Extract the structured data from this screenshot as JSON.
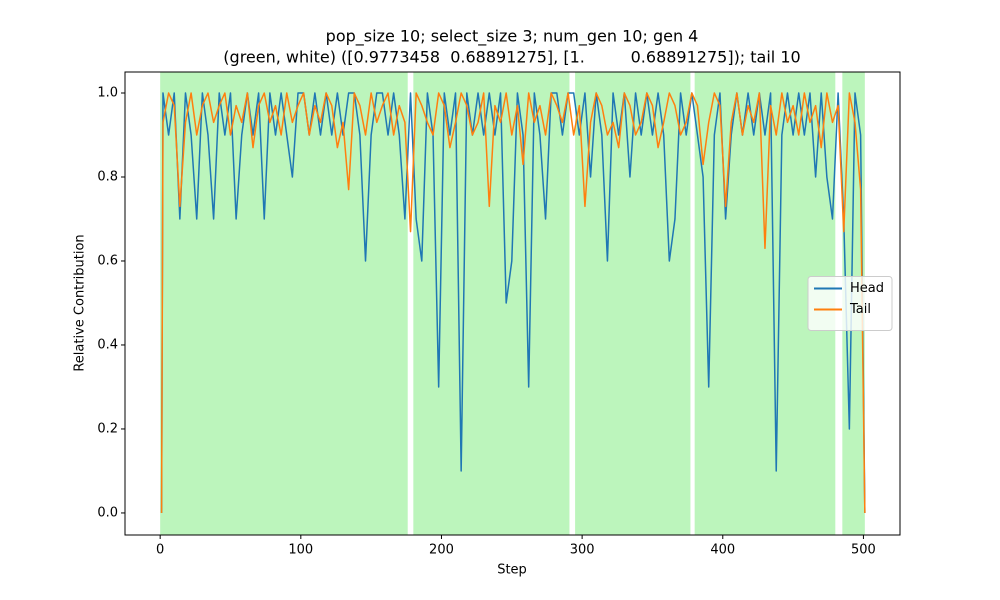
{
  "chart_data": {
    "type": "line",
    "title": [
      "pop_size 10; select_size 3; num_gen 10; gen 4",
      "(green, white) ([0.9773458  0.68891275], [1.         0.68891275]); tail 10"
    ],
    "xlabel": "Step",
    "ylabel": "Relative Contribution",
    "x": [
      1,
      2,
      6,
      10,
      14,
      18,
      22,
      26,
      30,
      34,
      38,
      42,
      46,
      50,
      54,
      58,
      62,
      66,
      70,
      74,
      78,
      82,
      86,
      90,
      94,
      98,
      102,
      106,
      110,
      114,
      118,
      122,
      126,
      130,
      134,
      138,
      142,
      146,
      150,
      154,
      158,
      162,
      166,
      170,
      174,
      178,
      182,
      186,
      190,
      194,
      198,
      202,
      206,
      210,
      214,
      218,
      222,
      226,
      230,
      234,
      238,
      242,
      246,
      250,
      254,
      258,
      262,
      266,
      270,
      274,
      278,
      282,
      286,
      290,
      294,
      298,
      302,
      306,
      310,
      314,
      318,
      322,
      326,
      330,
      334,
      338,
      342,
      346,
      350,
      354,
      358,
      362,
      366,
      370,
      374,
      378,
      382,
      386,
      390,
      394,
      398,
      402,
      406,
      410,
      414,
      418,
      422,
      426,
      430,
      434,
      438,
      442,
      446,
      450,
      454,
      458,
      462,
      466,
      470,
      474,
      478,
      482,
      486,
      490,
      494,
      498,
      501
    ],
    "series": [
      {
        "name": "Head",
        "color": "#1f77b4",
        "values": [
          0,
          1.0,
          0.9,
          1.0,
          0.7,
          1.0,
          0.9,
          0.7,
          1.0,
          0.9,
          0.7,
          1.0,
          0.9,
          1.0,
          0.7,
          0.9,
          1.0,
          0.9,
          1.0,
          0.7,
          1.0,
          0.9,
          1.0,
          0.9,
          0.8,
          1.0,
          1.0,
          0.9,
          1.0,
          0.9,
          1.0,
          0.9,
          1.0,
          0.9,
          1.0,
          1.0,
          0.9,
          0.6,
          0.9,
          1.0,
          1.0,
          0.9,
          1.0,
          0.9,
          0.7,
          1.0,
          0.7,
          0.6,
          1.0,
          0.9,
          0.3,
          1.0,
          0.9,
          1.0,
          0.1,
          1.0,
          0.9,
          1.0,
          0.9,
          1.0,
          0.9,
          1.0,
          0.5,
          0.6,
          1.0,
          0.9,
          0.3,
          1.0,
          0.9,
          0.7,
          1.0,
          1.0,
          0.9,
          1.0,
          1.0,
          0.9,
          1.0,
          0.8,
          1.0,
          0.9,
          0.6,
          1.0,
          0.9,
          1.0,
          0.8,
          1.0,
          0.9,
          1.0,
          0.9,
          1.0,
          0.9,
          0.6,
          0.7,
          1.0,
          0.9,
          1.0,
          0.9,
          0.8,
          0.3,
          0.9,
          1.0,
          0.7,
          0.9,
          1.0,
          0.9,
          1.0,
          0.9,
          1.0,
          0.9,
          1.0,
          0.1,
          0.9,
          1.0,
          0.9,
          1.0,
          0.9,
          1.0,
          0.8,
          1.0,
          0.8,
          0.7,
          1.0,
          0.7,
          0.2,
          1.0,
          0.9,
          0
        ]
      },
      {
        "name": "Tail",
        "color": "#ff7f0e",
        "values": [
          0,
          0.93,
          1.0,
          0.97,
          0.73,
          0.93,
          1.0,
          0.9,
          0.97,
          1.0,
          0.93,
          0.97,
          1.0,
          0.9,
          0.97,
          0.93,
          1.0,
          0.87,
          0.97,
          1.0,
          0.93,
          0.97,
          0.9,
          1.0,
          0.93,
          0.97,
          1.0,
          0.9,
          0.97,
          0.93,
          1.0,
          0.97,
          0.87,
          0.93,
          0.77,
          1.0,
          0.97,
          0.9,
          1.0,
          0.93,
          0.97,
          1.0,
          0.9,
          0.97,
          0.93,
          0.67,
          1.0,
          0.97,
          0.93,
          0.9,
          1.0,
          0.97,
          0.87,
          0.93,
          1.0,
          0.97,
          0.9,
          0.93,
          1.0,
          0.73,
          0.97,
          0.93,
          1.0,
          0.9,
          0.97,
          0.83,
          1.0,
          0.93,
          0.97,
          0.9,
          1.0,
          0.97,
          0.93,
          1.0,
          0.9,
          0.97,
          0.73,
          0.93,
          1.0,
          0.97,
          0.9,
          0.93,
          0.87,
          1.0,
          0.97,
          0.9,
          0.93,
          1.0,
          0.97,
          0.87,
          0.93,
          1.0,
          0.97,
          0.9,
          0.93,
          1.0,
          0.97,
          0.83,
          0.93,
          1.0,
          0.97,
          0.73,
          0.93,
          1.0,
          0.9,
          0.97,
          0.93,
          1.0,
          0.63,
          0.97,
          0.9,
          1.0,
          0.93,
          0.97,
          0.9,
          1.0,
          0.93,
          0.97,
          0.87,
          1.0,
          0.93,
          0.97,
          0.67,
          1.0,
          0.93,
          0.77,
          0
        ]
      }
    ],
    "spans": [
      [
        0,
        176
      ],
      [
        180,
        291
      ],
      [
        295,
        377
      ],
      [
        380,
        480
      ],
      [
        485,
        501
      ]
    ],
    "span_color": "#90ee90",
    "xlim": [
      -25,
      526
    ],
    "xticks": [
      0,
      100,
      200,
      300,
      400,
      500
    ],
    "ylim": [
      -0.0525,
      1.05
    ],
    "yticks": [
      {
        "value": 0,
        "label": "0.0"
      },
      {
        "value": 0.2,
        "label": "0.2"
      },
      {
        "value": 0.4,
        "label": "0.4"
      },
      {
        "value": 0.6,
        "label": "0.6"
      },
      {
        "value": 0.8,
        "label": "0.8"
      },
      {
        "value": 1.0,
        "label": "1.0"
      }
    ],
    "legend": "center right"
  }
}
